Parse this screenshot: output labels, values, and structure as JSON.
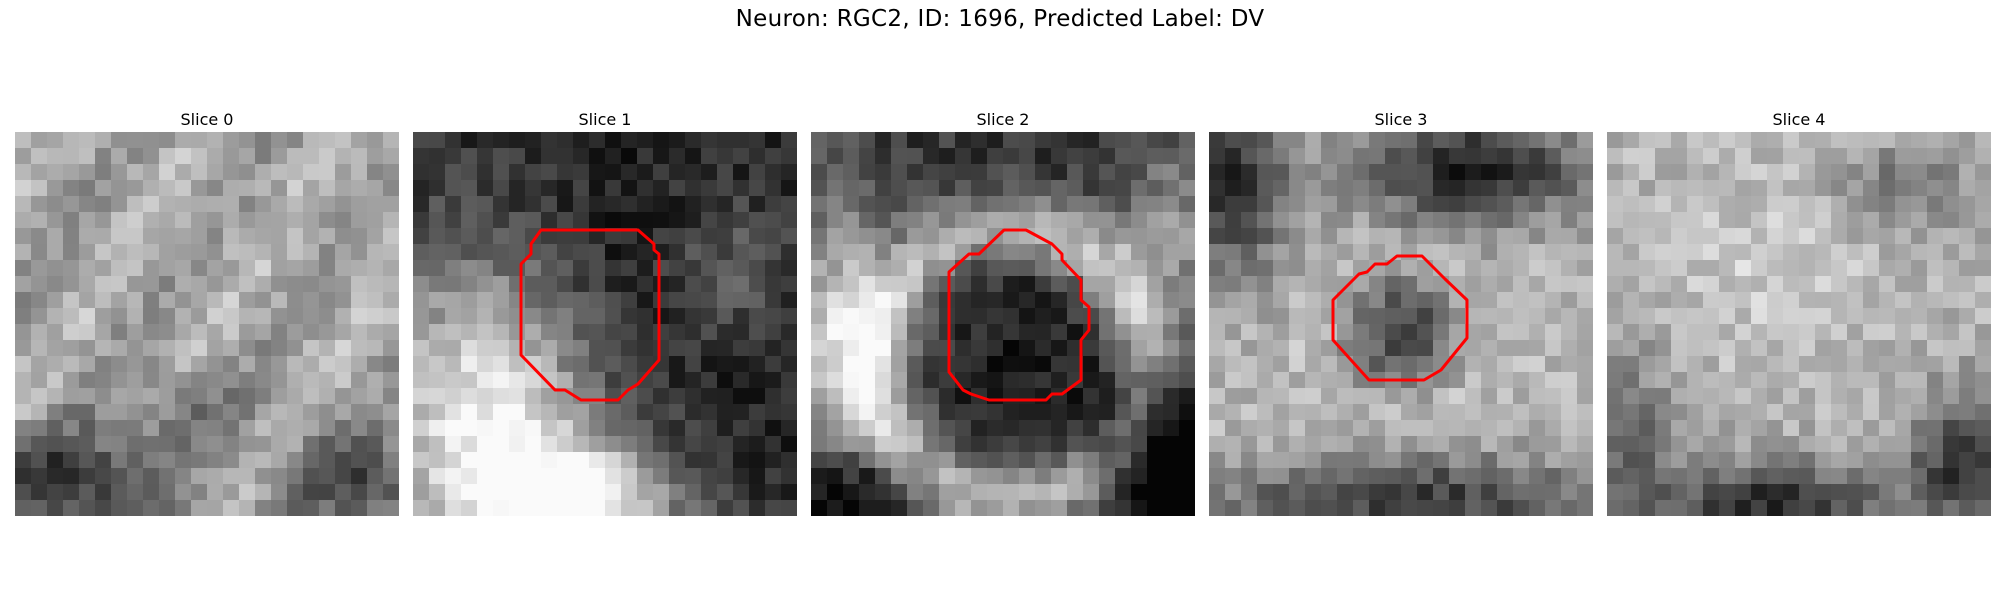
{
  "figure": {
    "title": "Neuron: RGC2, ID: 1696, Predicted Label: DV",
    "outline_color": "#ff0000",
    "colormap": "gray",
    "panels": [
      {
        "title": "Slice 0",
        "has_outline": false,
        "scene": "light-noise-with-dark-blobs-bottom"
      },
      {
        "title": "Slice 1",
        "has_outline": true,
        "scene": "dark-cell-on-dark-background-bright-lower-left"
      },
      {
        "title": "Slice 2",
        "has_outline": true,
        "scene": "dark-cell-ringed-by-bright-membrane"
      },
      {
        "title": "Slice 3",
        "has_outline": true,
        "scene": "small-grey-cell-in-bright-field"
      },
      {
        "title": "Slice 4",
        "has_outline": false,
        "scene": "light-noise-with-dark-band-bottom"
      }
    ]
  }
}
